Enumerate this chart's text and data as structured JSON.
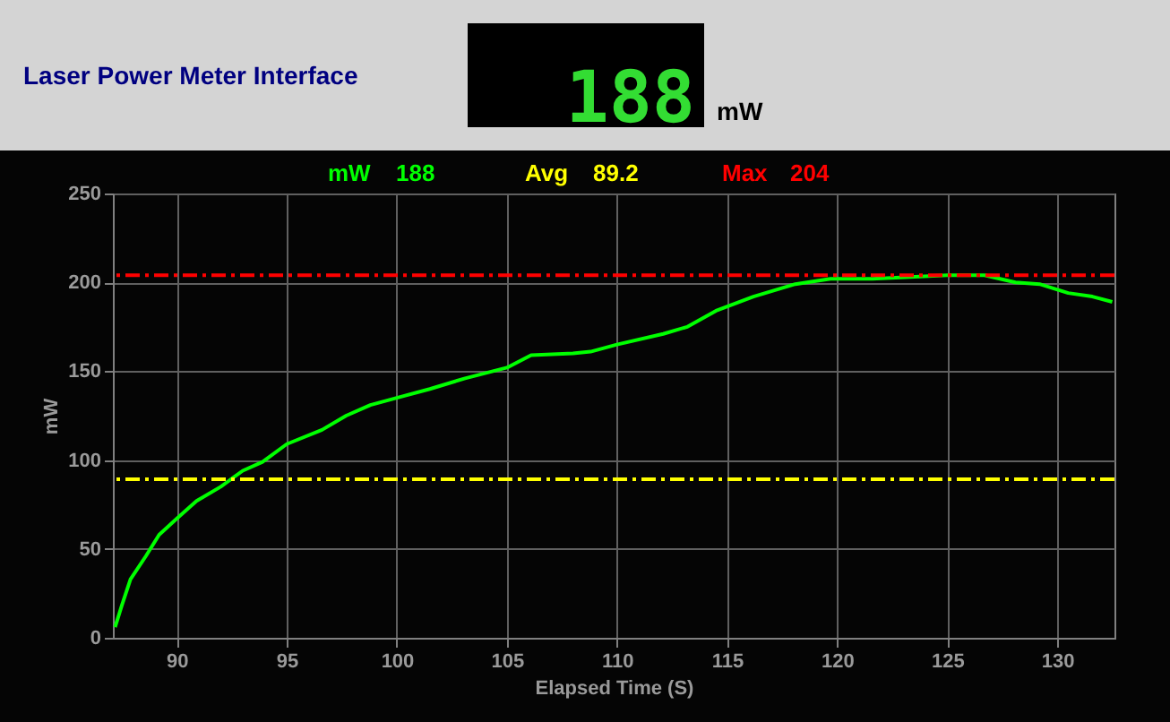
{
  "chart_data": {
    "type": "line",
    "title": "Laser Power Meter Interface",
    "xlabel": "Elapsed Time (S)",
    "ylabel": "mW",
    "annotations": [
      "188",
      "mW",
      "188",
      "89.2",
      "204"
    ],
    "xlim": [
      87.1,
      132.6
    ],
    "xticks": [
      90,
      95,
      100,
      105,
      110,
      115,
      120,
      125,
      130
    ],
    "ylim": [
      0,
      250
    ],
    "yticks": [
      0,
      50,
      100,
      150,
      200,
      250
    ],
    "grid": true,
    "ref_lines": [
      {
        "axis": "y",
        "value": 89.2,
        "label": "Avg",
        "color": "#ffff00",
        "line_style": "dashed"
      },
      {
        "axis": "y",
        "value": 204,
        "label": "Max",
        "color": "#ff0000",
        "line_style": "dashed"
      }
    ],
    "series": [
      {
        "name": "mW",
        "color": "#00ff00",
        "x": [
          87.2,
          87.5,
          87.9,
          88.6,
          89.2,
          90,
          90.9,
          92,
          93,
          93.9,
          95,
          96.6,
          97.7,
          98.8,
          100,
          101.5,
          103.1,
          105,
          106.1,
          108,
          108.8,
          110,
          112.1,
          113.2,
          114.5,
          116.2,
          118.1,
          119.7,
          121.6,
          123.3,
          125,
          125.9,
          126.7,
          128.1,
          129.2,
          130.5,
          131.6,
          132.5
        ],
        "values": [
          6,
          18,
          33,
          46,
          58,
          67,
          77,
          85,
          94,
          99,
          109,
          117,
          125,
          131,
          135,
          140,
          146,
          152,
          159,
          160,
          161,
          165,
          171,
          175,
          184,
          192,
          199,
          202,
          202,
          203,
          204,
          204,
          204,
          200,
          199,
          194,
          192,
          189
        ]
      }
    ]
  }
}
